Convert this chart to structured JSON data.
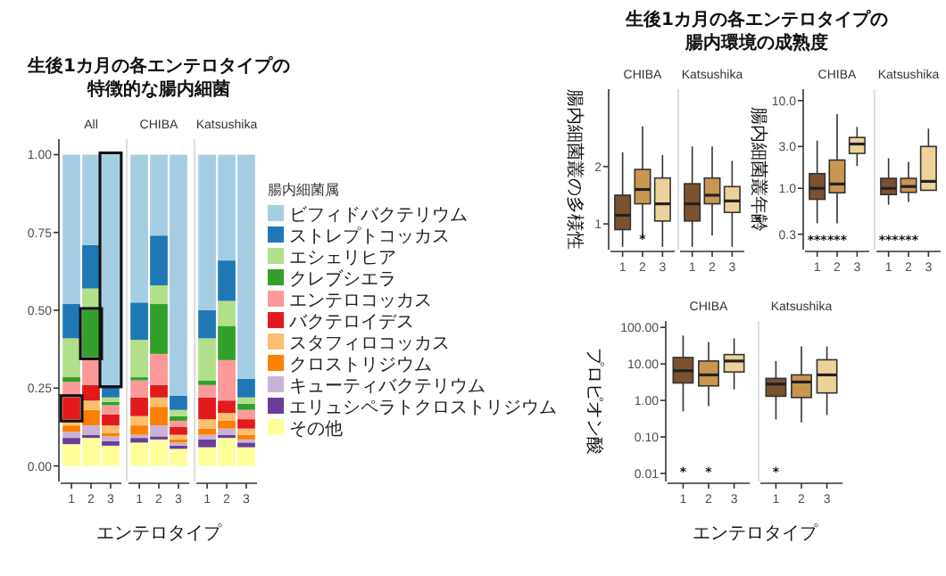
{
  "chart_data": [
    {
      "type": "bar",
      "stacked": true,
      "title": "生後1カ月の各エンテロタイプの特徴的な腸内細菌",
      "subtitle": "All",
      "xlabel": "エンテロタイプ",
      "categories": [
        "1",
        "2",
        "3"
      ],
      "ylim": [
        -0.05,
        1.05
      ],
      "yticks": [
        {
          "value": 0,
          "label": "0.00"
        },
        {
          "value": 0.25,
          "label": "0.25"
        },
        {
          "value": 0.5,
          "label": "0.50"
        },
        {
          "value": 0.75,
          "label": "0.75"
        },
        {
          "value": 1,
          "label": "1.00"
        }
      ],
      "series": [
        {
          "color": "#ffff99",
          "values": [
            0.07,
            0.09,
            0.065
          ]
        },
        {
          "color": "#6a3d9a",
          "values": [
            0.02,
            0.01,
            0.015
          ]
        },
        {
          "color": "#cab2d6",
          "values": [
            0.02,
            0.03,
            0.015
          ]
        },
        {
          "color": "#ff7f00",
          "values": [
            0.02,
            0.05,
            0.01
          ]
        },
        {
          "color": "#fdbf6f",
          "values": [
            0.02,
            0.03,
            0.025
          ]
        },
        {
          "color": "#e31a1c",
          "values": [
            0.07,
            0.05,
            0.035
          ]
        },
        {
          "color": "#fb9a99",
          "values": [
            0.05,
            0.09,
            0.03
          ]
        },
        {
          "color": "#33a02c",
          "values": [
            0.015,
            0.15,
            0.01
          ]
        },
        {
          "color": "#b2df8a",
          "values": [
            0.125,
            0.07,
            0.015
          ]
        },
        {
          "color": "#1f78b4",
          "values": [
            0.11,
            0.14,
            0.04
          ]
        },
        {
          "color": "#a6cee3",
          "values": [
            0.48,
            0.29,
            0.74
          ]
        }
      ]
    },
    {
      "type": "bar",
      "stacked": true,
      "subtitle": "CHIBA",
      "categories": [
        "1",
        "2",
        "3"
      ],
      "ylim": [
        -0.05,
        1.05
      ],
      "tick_labels": "x",
      "series": [
        {
          "color": "#ffff99",
          "values": [
            0.075,
            0.085,
            0.055
          ]
        },
        {
          "color": "#6a3d9a",
          "values": [
            0.015,
            0.01,
            0.01
          ]
        },
        {
          "color": "#cab2d6",
          "values": [
            0.01,
            0.035,
            0.01
          ]
        },
        {
          "color": "#ff7f00",
          "values": [
            0.03,
            0.06,
            0.01
          ]
        },
        {
          "color": "#fdbf6f",
          "values": [
            0.03,
            0.03,
            0.015
          ]
        },
        {
          "color": "#e31a1c",
          "values": [
            0.06,
            0.04,
            0.025
          ]
        },
        {
          "color": "#fb9a99",
          "values": [
            0.055,
            0.1,
            0.02
          ]
        },
        {
          "color": "#33a02c",
          "values": [
            0.01,
            0.16,
            0.015
          ]
        },
        {
          "color": "#b2df8a",
          "values": [
            0.12,
            0.06,
            0.02
          ]
        },
        {
          "color": "#1f78b4",
          "values": [
            0.12,
            0.16,
            0.045
          ]
        },
        {
          "color": "#a6cee3",
          "values": [
            0.475,
            0.26,
            0.775
          ]
        }
      ]
    },
    {
      "type": "bar",
      "stacked": true,
      "subtitle": "Katsushika",
      "categories": [
        "1",
        "2",
        "3"
      ],
      "ylim": [
        -0.05,
        1.05
      ],
      "tick_labels": "x",
      "legend": "right",
      "legend_title": "腸内細菌属",
      "series": [
        {
          "name": "その他",
          "color": "#ffff99",
          "values": [
            0.06,
            0.09,
            0.06
          ]
        },
        {
          "name": "エリュシペラトクロストリジウム",
          "color": "#6a3d9a",
          "values": [
            0.025,
            0.01,
            0.015
          ]
        },
        {
          "name": "キューティバクテリウム",
          "color": "#cab2d6",
          "values": [
            0.015,
            0.02,
            0.01
          ]
        },
        {
          "name": "クロストリジウム",
          "color": "#ff7f00",
          "values": [
            0.02,
            0.025,
            0.015
          ]
        },
        {
          "name": "スタフィロコッカス",
          "color": "#fdbf6f",
          "values": [
            0.03,
            0.025,
            0.02
          ]
        },
        {
          "name": "バクテロイデス",
          "color": "#e31a1c",
          "values": [
            0.07,
            0.04,
            0.03
          ]
        },
        {
          "name": "エンテロコッカス",
          "color": "#fb9a99",
          "values": [
            0.04,
            0.13,
            0.03
          ]
        },
        {
          "name": "クレブシエラ",
          "color": "#33a02c",
          "values": [
            0.015,
            0.11,
            0.02
          ]
        },
        {
          "name": "エシェリヒア",
          "color": "#b2df8a",
          "values": [
            0.135,
            0.08,
            0.02
          ]
        },
        {
          "name": "ストレプトコッカス",
          "color": "#1f78b4",
          "values": [
            0.09,
            0.13,
            0.06
          ]
        },
        {
          "name": "ビフィドバクテリウム",
          "color": "#a6cee3",
          "values": [
            0.5,
            0.34,
            0.72
          ]
        }
      ]
    },
    {
      "type": "box",
      "title": "生後1カ月の各エンテロタイプの腸内環境の成熟度",
      "subtitle": "CHIBA",
      "ylabel": "腸内細菌叢の多様性",
      "categories": [
        "1",
        "2",
        "3"
      ],
      "ylim": [
        0.55,
        3.35
      ],
      "yticks": [
        1,
        2
      ],
      "colors": [
        "#7a5230",
        "#c8964e",
        "#ecd29a"
      ],
      "boxes": [
        {
          "low": 0.6,
          "q1": 0.9,
          "median": 1.15,
          "q3": 1.5,
          "high": 2.25
        },
        {
          "low": 0.75,
          "q1": 1.35,
          "median": 1.6,
          "q3": 1.95,
          "high": 2.7
        },
        {
          "low": 0.6,
          "q1": 1.05,
          "median": 1.35,
          "q3": 1.8,
          "high": 2.2
        }
      ],
      "annotations": [
        {
          "text": "*",
          "x": "2",
          "y": 0.75
        }
      ]
    },
    {
      "type": "box",
      "subtitle": "Katsushika",
      "categories": [
        "1",
        "2",
        "3"
      ],
      "ylim": [
        0.55,
        3.35
      ],
      "tick_labels": "x",
      "colors": [
        "#7a5230",
        "#c8964e",
        "#ecd29a"
      ],
      "boxes": [
        {
          "low": 0.6,
          "q1": 1.05,
          "median": 1.35,
          "q3": 1.7,
          "high": 2.35
        },
        {
          "low": 0.8,
          "q1": 1.35,
          "median": 1.5,
          "q3": 1.8,
          "high": 2.35
        },
        {
          "low": 0.6,
          "q1": 1.2,
          "median": 1.4,
          "q3": 1.65,
          "high": 2.1
        }
      ]
    },
    {
      "type": "box",
      "subtitle": "CHIBA",
      "ylabel": "腸内細菌叢年齢",
      "log": true,
      "categories": [
        "1",
        "2",
        "3"
      ],
      "ylim": [
        0.2,
        13.5
      ],
      "yticks": [
        {
          "value": 0.3,
          "label": "0.3"
        },
        {
          "value": 1,
          "label": "1.0"
        },
        {
          "value": 3,
          "label": "3.0"
        },
        {
          "value": 10,
          "label": "10.0"
        }
      ],
      "colors": [
        "#7a5230",
        "#c8964e",
        "#ecd29a"
      ],
      "boxes": [
        {
          "low": 0.4,
          "q1": 0.75,
          "median": 1.0,
          "q3": 1.47,
          "high": 3.5
        },
        {
          "low": 0.4,
          "q1": 0.89,
          "median": 1.12,
          "q3": 2.1,
          "high": 7
        },
        {
          "low": 1.8,
          "q1": 2.5,
          "median": 3.2,
          "q3": 3.8,
          "high": 5
        }
      ],
      "annotations": [
        "***",
        "***"
      ]
    },
    {
      "type": "box",
      "subtitle": "Katsushika",
      "log": true,
      "categories": [
        "1",
        "2",
        "3"
      ],
      "ylim": [
        0.2,
        13.5
      ],
      "tick_labels": "x",
      "colors": [
        "#7a5230",
        "#c8964e",
        "#ecd29a"
      ],
      "boxes": [
        {
          "low": 0.65,
          "q1": 0.85,
          "median": 1.0,
          "q3": 1.3,
          "high": 2.2
        },
        {
          "low": 0.7,
          "q1": 0.9,
          "median": 1.05,
          "q3": 1.3,
          "high": 2.0
        },
        {
          "low": 0.95,
          "q1": 0.95,
          "median": 1.2,
          "q3": 3.0,
          "high": 4.8
        }
      ],
      "annotations": [
        "***",
        "***"
      ]
    },
    {
      "type": "box",
      "subtitle": "CHIBA",
      "ylabel": "プロピオン酸",
      "xlabel": "エンテロタイプ",
      "log": true,
      "categories": [
        "1",
        "2",
        "3"
      ],
      "ylim": [
        0.006,
        150
      ],
      "yticks": [
        {
          "value": 0.01,
          "label": "0.01"
        },
        {
          "value": 0.1,
          "label": "0.10"
        },
        {
          "value": 1,
          "label": "1.00"
        },
        {
          "value": 10,
          "label": "10.00"
        },
        {
          "value": 100,
          "label": "100.00"
        }
      ],
      "colors": [
        "#7a5230",
        "#c8964e",
        "#ecd29a"
      ],
      "boxes": [
        {
          "low": 0.5,
          "q1": 3,
          "median": 6.5,
          "q3": 15,
          "high": 60
        },
        {
          "low": 0.7,
          "q1": 2.5,
          "median": 5,
          "q3": 12,
          "high": 40
        },
        {
          "low": 2,
          "q1": 6,
          "median": 12,
          "q3": 18,
          "high": 50
        }
      ],
      "annotations": [
        "*",
        "*"
      ]
    },
    {
      "type": "box",
      "subtitle": "Katsushika",
      "log": true,
      "categories": [
        "1",
        "2",
        "3"
      ],
      "ylim": [
        0.006,
        150
      ],
      "tick_labels": "x",
      "colors": [
        "#7a5230",
        "#c8964e",
        "#ecd29a"
      ],
      "boxes": [
        {
          "low": 0.3,
          "q1": 1.3,
          "median": 2.8,
          "q3": 4,
          "high": 12
        },
        {
          "low": 0.25,
          "q1": 1.2,
          "median": 3.2,
          "q3": 5,
          "high": 30
        },
        {
          "low": 0.4,
          "q1": 1.6,
          "median": 5,
          "q3": 13,
          "high": 30
        }
      ],
      "annotations": [
        "*"
      ]
    }
  ]
}
